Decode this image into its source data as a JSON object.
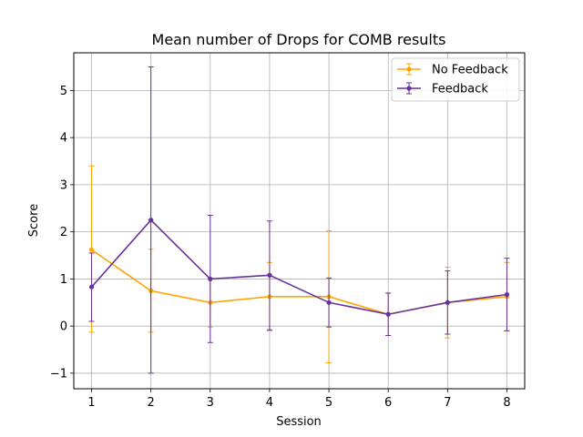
{
  "chart_data": {
    "type": "line",
    "title": "Mean number of Drops for COMB results",
    "xlabel": "Session",
    "ylabel": "Score",
    "x": [
      1,
      2,
      3,
      4,
      5,
      6,
      7,
      8
    ],
    "xlim": [
      0.7,
      8.3
    ],
    "ylim": [
      -1.33,
      5.8
    ],
    "xticks": [
      1,
      2,
      3,
      4,
      5,
      6,
      7,
      8
    ],
    "yticks": [
      -1,
      0,
      1,
      2,
      3,
      4,
      5
    ],
    "ytick_labels": [
      "−1",
      "0",
      "1",
      "2",
      "3",
      "4",
      "5"
    ],
    "grid": true,
    "legend_position": "top-right",
    "series": [
      {
        "name": "No Feedback",
        "color": "#ffa500",
        "values": [
          1.62,
          0.75,
          0.5,
          0.625,
          0.625,
          0.25,
          0.5,
          0.625
        ],
        "err_low": [
          -0.13,
          -0.13,
          -0.02,
          -0.1,
          -0.78,
          -0.2,
          -0.25,
          -0.1
        ],
        "err_high": [
          3.4,
          1.63,
          1.02,
          1.35,
          2.02,
          0.7,
          1.25,
          1.35
        ]
      },
      {
        "name": "Feedback",
        "color": "#663399",
        "values": [
          0.83,
          2.25,
          1.0,
          1.08,
          0.5,
          0.25,
          0.5,
          0.67
        ],
        "err_low": [
          0.1,
          -1.0,
          -0.35,
          -0.08,
          -0.02,
          -0.2,
          -0.17,
          -0.1
        ],
        "err_high": [
          1.55,
          5.5,
          2.35,
          2.23,
          1.02,
          0.7,
          1.17,
          1.44
        ]
      }
    ]
  }
}
